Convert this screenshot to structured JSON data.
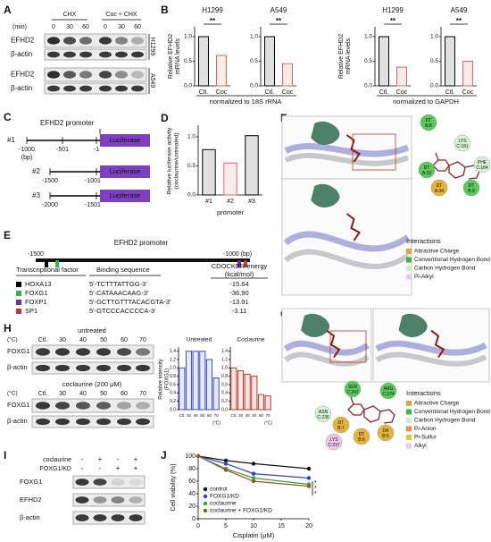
{
  "panel_labels": [
    "A",
    "B",
    "C",
    "D",
    "E",
    "F",
    "G",
    "H",
    "I",
    "J"
  ],
  "panel_a": {
    "unit": "(min)",
    "groups": [
      "CHX",
      "Coc + CHX"
    ],
    "times": [
      "0",
      "30",
      "60",
      "0",
      "30",
      "60"
    ],
    "proteins": [
      "EFHD2",
      "β-actin",
      "EFHD2",
      "β-actin"
    ],
    "cell_lines": [
      "H1299",
      "A549"
    ]
  },
  "panel_b": {
    "y_label": [
      "Relative EFHD2",
      "mRNA levels"
    ],
    "notes": [
      "normalized to 18S rRNA",
      "normalized to GAPDH"
    ],
    "charts": [
      {
        "type": "bar",
        "title": "H1299",
        "significance": "**",
        "categories": [
          "Ctl.",
          "Coc"
        ],
        "values": [
          1,
          0.62
        ],
        "colors": [
          "#000000",
          "#e06666"
        ],
        "ylim": [
          0,
          1.2
        ],
        "yticks": [
          {
            "value": 0,
            "label": "0.0"
          },
          {
            "value": 0.5,
            "label": "0.5"
          },
          {
            "value": 1,
            "label": "1.0"
          }
        ]
      },
      {
        "type": "bar",
        "title": "A549",
        "significance": "**",
        "categories": [
          "Ctl.",
          "Coc"
        ],
        "values": [
          1,
          0.45
        ],
        "colors": [
          "#000000",
          "#e06666"
        ],
        "ylim": [
          0,
          1.2
        ],
        "yticks": [
          {
            "value": 0,
            "label": "0.0"
          },
          {
            "value": 0.5,
            "label": "0.5"
          },
          {
            "value": 1,
            "label": "1.0"
          }
        ]
      },
      {
        "type": "bar",
        "title": "H1299",
        "significance": "**",
        "categories": [
          "Ctl.",
          "Coc"
        ],
        "values": [
          1,
          0.38
        ],
        "colors": [
          "#000000",
          "#e06666"
        ],
        "ylim": [
          0,
          1.2
        ],
        "yticks": [
          {
            "value": 0,
            "label": "0.0"
          },
          {
            "value": 0.5,
            "label": "0.5"
          },
          {
            "value": 1,
            "label": "1.0"
          }
        ]
      },
      {
        "type": "bar",
        "title": "A549",
        "significance": "**",
        "categories": [
          "Ctl.",
          "Coc"
        ],
        "values": [
          1,
          0.5
        ],
        "colors": [
          "#000000",
          "#e06666"
        ],
        "ylim": [
          0,
          1.2
        ],
        "yticks": [
          {
            "value": 0,
            "label": "0.0"
          },
          {
            "value": 0.5,
            "label": "0.5"
          },
          {
            "value": 1,
            "label": "1.0"
          }
        ]
      }
    ]
  },
  "panel_c": {
    "title": "EFHD2 promoter",
    "unit": "(bp)",
    "reporter": "Luciferase",
    "constructs": [
      {
        "name": "#1",
        "start": "-1000",
        "mid": "-501",
        "end": "-1"
      },
      {
        "name": "#2",
        "start": "-1500",
        "end": "-1001"
      },
      {
        "name": "#3",
        "start": "-2000",
        "end": "-1501"
      }
    ]
  },
  "panel_d": {
    "type": "bar",
    "y_label": [
      "Relative luciferase activity",
      "(coclaurine/untreated)"
    ],
    "x_label": "promoter",
    "categories": [
      "#1",
      "#2",
      "#3"
    ],
    "values": [
      0.78,
      0.55,
      1.02
    ],
    "colors": [
      "#000000",
      "#e06666",
      "#000000"
    ],
    "ylim": [
      0,
      1.2
    ],
    "yticks": [
      {
        "value": 0,
        "label": "0.0"
      },
      {
        "value": 0.5,
        "label": "0.5"
      },
      {
        "value": 1,
        "label": "1.0"
      }
    ]
  },
  "panel_e": {
    "title": "EFHD2 promoter",
    "start": "-1500",
    "end": "-1000 (bp)",
    "headers": [
      "Transcriptional factor",
      "Binding sequence",
      "CDOCKER energy",
      "(kcal/mol)"
    ],
    "rows": [
      {
        "factor": "HOXA13",
        "sequence": "5′-TCTTTATTGG-3′",
        "energy": "-15.64",
        "color": "#000000"
      },
      {
        "factor": "FOXG1",
        "sequence": "5′-CATAAACAAG-3′",
        "energy": "-36.90",
        "color": "#33b54a"
      },
      {
        "factor": "FOXP1",
        "sequence": "5′-GCTTGTTTACACGTA-3′",
        "energy": "-13.91",
        "color": "#7030a0"
      },
      {
        "factor": "SP1",
        "sequence": "5′-GTCCCACCCCA-3′",
        "energy": "-3.11",
        "color": "#c0392b"
      }
    ]
  },
  "panel_f": {
    "residues": [
      {
        "label": "DT",
        "id": "B:8",
        "color": "#5cc95c"
      },
      {
        "label": "LYS",
        "id": "C:181",
        "color": "#d6f3d6"
      },
      {
        "label": "PHE",
        "id": "C:184",
        "color": "#d6f3d6"
      },
      {
        "label": "DT",
        "id": "A:33",
        "color": "#5cc95c"
      },
      {
        "label": "DT",
        "id": "A:34",
        "color": "#e6b23c"
      },
      {
        "label": "DT",
        "id": "B:9",
        "color": "#5cc95c"
      }
    ],
    "legend_title": "Interactions",
    "legend": [
      {
        "label": "Attractive Charge",
        "color": "#e6a03c"
      },
      {
        "label": "Conventional Hydrogen Bond",
        "color": "#3cb44b"
      },
      {
        "label": "Carbon Hydrogen Bond",
        "color": "#c9efc9"
      },
      {
        "label": "Pi-Alkyl",
        "color": "#f0c6ea"
      }
    ]
  },
  "panel_g": {
    "residues": [
      {
        "label": "SER",
        "id": "C:247",
        "color": "#5cc95c"
      },
      {
        "label": "ARG",
        "id": "C:274",
        "color": "#5cc95c"
      },
      {
        "label": "ASN",
        "id": "C:236",
        "color": "#d6f3d6"
      },
      {
        "label": "DT",
        "id": "B:7",
        "color": "#e6b23c"
      },
      {
        "label": "DT",
        "id": "B:6",
        "color": "#e6b23c"
      },
      {
        "label": "DA",
        "id": "B:5",
        "color": "#e6b23c"
      },
      {
        "label": "LYS",
        "id": "C:237",
        "color": "#f0c6ea"
      }
    ],
    "legend_title": "Interactions",
    "legend": [
      {
        "label": "Attractive Charge",
        "color": "#e6a03c"
      },
      {
        "label": "Conventional Hydrogen Bond",
        "color": "#3cb44b"
      },
      {
        "label": "Carbon Hydrogen Bond",
        "color": "#c9efc9"
      },
      {
        "label": "Pi-Anion",
        "color": "#f08c3c"
      },
      {
        "label": "Pi-Sulfur",
        "color": "#e6c82c"
      },
      {
        "label": "Alkyl",
        "color": "#f0c6ea"
      }
    ]
  },
  "panel_h": {
    "untreated": "untreated",
    "treated": "coclaurine (200 μM)",
    "unit": "(°C)",
    "temps": [
      "Ctl.",
      "30",
      "40",
      "50",
      "60",
      "70"
    ],
    "proteins": [
      "FOXG1",
      "β-actin"
    ],
    "y_label": [
      "Relative intensity",
      "(FOXG1)"
    ],
    "charts": [
      {
        "type": "bar",
        "title": "Untreated",
        "categories": [
          "Ctl.",
          "30",
          "40",
          "50",
          "60",
          "70"
        ],
        "values": [
          1,
          1.4,
          1.4,
          1.4,
          1.2,
          0.76
        ],
        "color": "#3b4fc4",
        "ylim": [
          0,
          1.5
        ],
        "yticks": [
          {
            "value": 0,
            "label": "0.0"
          },
          {
            "value": 0.2,
            "label": "0.2"
          },
          {
            "value": 0.4,
            "label": "0.4"
          },
          {
            "value": 0.6,
            "label": "0.6"
          },
          {
            "value": 0.8,
            "label": "0.8"
          },
          {
            "value": 1,
            "label": "1.0"
          },
          {
            "value": 1.2,
            "label": "1.2"
          },
          {
            "value": 1.4,
            "label": "1.4"
          }
        ]
      },
      {
        "type": "bar",
        "title": "Coclaurine",
        "categories": [
          "Ctl.",
          "30",
          "40",
          "50",
          "60",
          "70"
        ],
        "values": [
          1,
          0.93,
          0.85,
          0.8,
          0.36,
          0.33
        ],
        "color": "#c0392b",
        "ylim": [
          0,
          1.5
        ],
        "yticks": [
          {
            "value": 0,
            "label": "0.0"
          },
          {
            "value": 0.2,
            "label": "0.2"
          },
          {
            "value": 0.4,
            "label": "0.4"
          },
          {
            "value": 0.6,
            "label": "0.6"
          },
          {
            "value": 0.8,
            "label": "0.8"
          },
          {
            "value": 1,
            "label": "1.0"
          },
          {
            "value": 1.2,
            "label": "1.2"
          },
          {
            "value": 1.4,
            "label": "1.4"
          }
        ]
      }
    ]
  },
  "panel_i": {
    "conditions": [
      {
        "name": "coclaurine",
        "signs": [
          "-",
          "+",
          "-",
          "+"
        ]
      },
      {
        "name": "FOXG1/KD",
        "signs": [
          "-",
          "-",
          "+",
          "+"
        ]
      }
    ],
    "proteins": [
      "FOXG1",
      "EFHD2",
      "β-actin"
    ]
  },
  "panel_j": {
    "type": "line",
    "x_label": "Cisplatin (μM)",
    "y_label": "Cell viability (%)",
    "x": [
      0,
      5,
      10,
      20
    ],
    "xlim": [
      0,
      20
    ],
    "xticks": [
      0,
      5,
      10,
      15,
      20
    ],
    "ylim": [
      0,
      100
    ],
    "yticks": [
      0,
      20,
      40,
      60,
      80,
      100
    ],
    "significance": [
      "*",
      "*",
      "*"
    ],
    "series": [
      {
        "name": "control",
        "color": "#111111",
        "values": [
          100,
          93,
          88,
          80
        ]
      },
      {
        "name": "FOXG1/KD",
        "color": "#2f3fd0",
        "values": [
          100,
          88,
          72,
          65
        ]
      },
      {
        "name": "coclaurine",
        "color": "#4a9a3a",
        "values": [
          100,
          80,
          65,
          55
        ]
      },
      {
        "name": "coclaurine + FOXG1/KD",
        "color": "#8a5a2b",
        "values": [
          100,
          78,
          60,
          52
        ]
      }
    ]
  }
}
